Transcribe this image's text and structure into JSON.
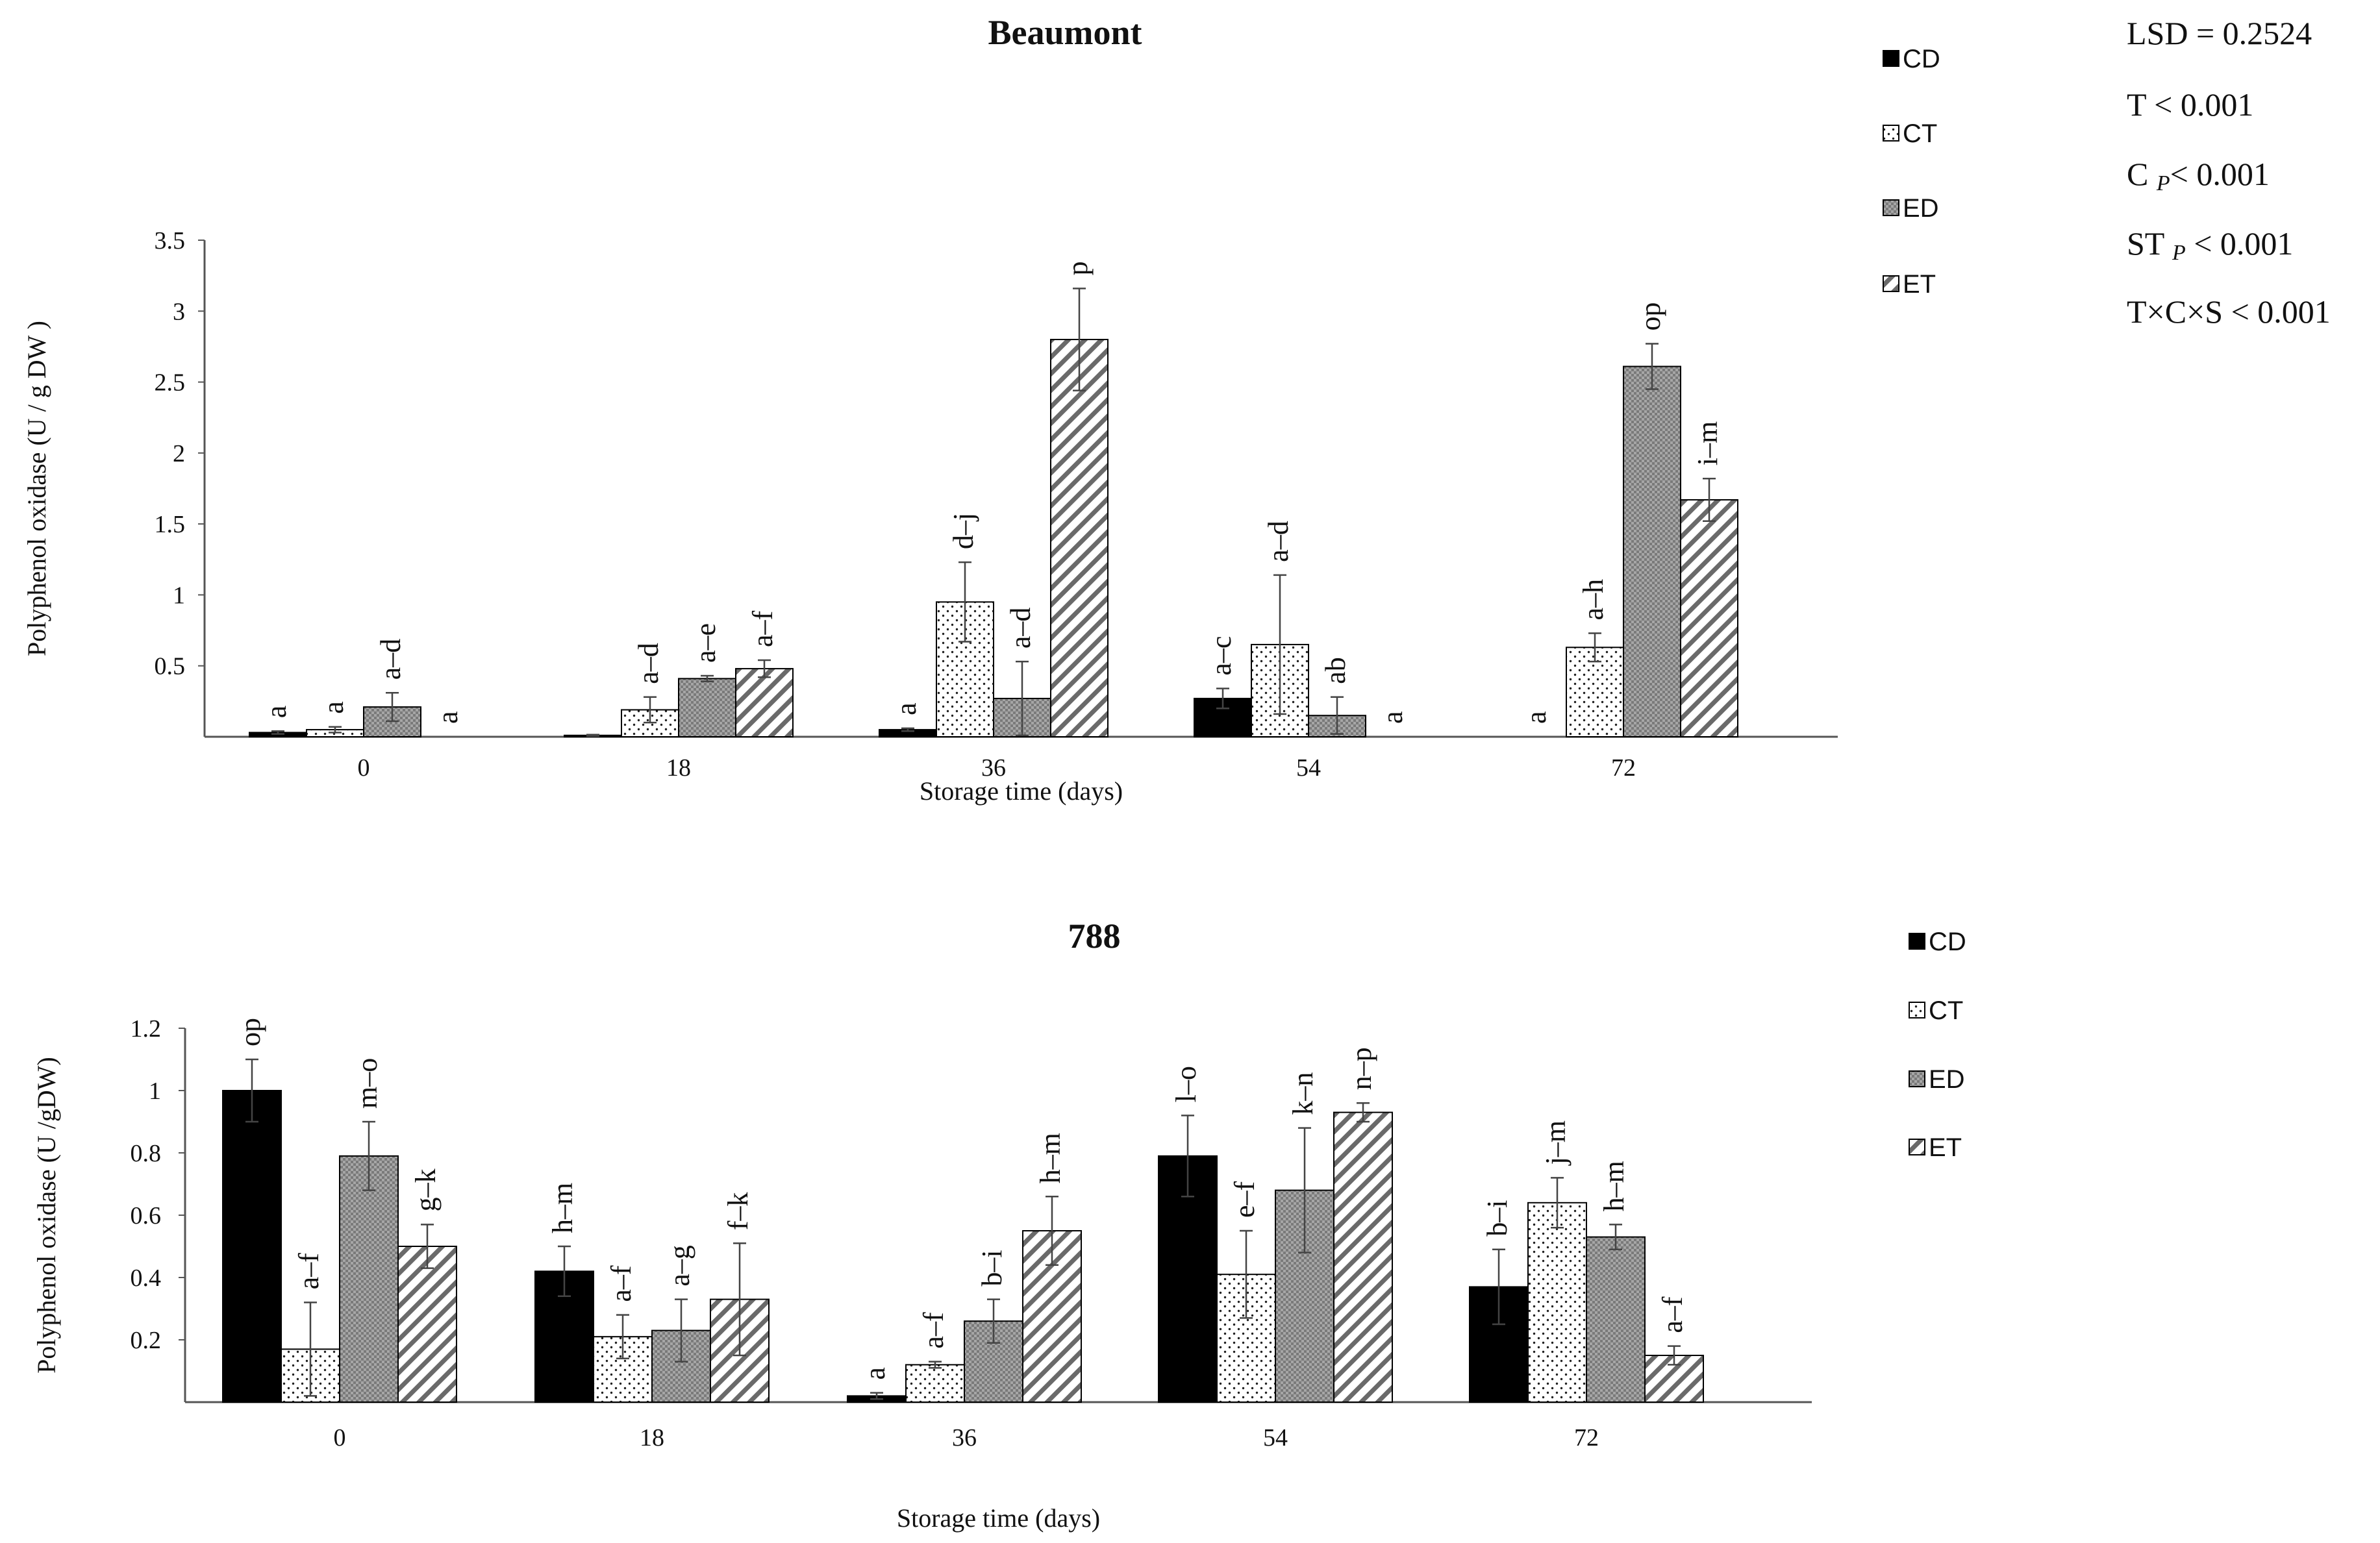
{
  "stats": {
    "lsd": "LSD =  0.2524",
    "t": "T < 0.001",
    "c_pre": "C ",
    "c_sub": "P",
    "c_post": "< 0.001",
    "st_pre": "ST ",
    "st_sub": "P",
    "st_post": " < 0.001",
    "txcxs": "T×C×S < 0.001"
  },
  "colors": {
    "CD": "#000000",
    "CT": "#ffffff",
    "ED": "#a9a9a9",
    "ET": "#ffffff",
    "axis": "#555555"
  },
  "chart_data": [
    {
      "id": "beaumont",
      "type": "bar",
      "title": "Beaumont",
      "xlabel": "Storage time  (days)",
      "ylabel": "Polyphenol oxidase (U / g DW )",
      "ylim": [
        0,
        3.5
      ],
      "yticks": [
        "0.5",
        "1",
        "1.5",
        "2",
        "2.5",
        "3",
        "3.5"
      ],
      "categories": [
        "0",
        "18",
        "36",
        "54",
        "72"
      ],
      "series": [
        {
          "name": "CD",
          "pattern": "solid",
          "values": [
            0.03,
            0.01,
            0.05,
            0.27,
            0
          ],
          "errors": [
            0.01,
            0.005,
            0.01,
            0.07,
            0
          ],
          "letters": [
            "a",
            "",
            "a",
            "a–c",
            "a"
          ]
        },
        {
          "name": "CT",
          "pattern": "dots",
          "values": [
            0.05,
            0.19,
            0.95,
            0.65,
            0.63
          ],
          "errors": [
            0.02,
            0.09,
            0.28,
            0.49,
            0.1
          ],
          "letters": [
            "a",
            "a–d",
            "d–j",
            "a–d",
            "a–h"
          ]
        },
        {
          "name": "ED",
          "pattern": "crosshatch",
          "values": [
            0.21,
            0.41,
            0.27,
            0.15,
            2.61
          ],
          "errors": [
            0.1,
            0.02,
            0.26,
            0.13,
            0.16
          ],
          "letters": [
            "a–d",
            "a–e",
            "a–d",
            "ab",
            "op"
          ]
        },
        {
          "name": "ET",
          "pattern": "diagonal",
          "values": [
            0,
            0.48,
            2.8,
            0,
            1.67
          ],
          "errors": [
            0,
            0.06,
            0.36,
            0,
            0.15
          ],
          "letters": [
            "a",
            "a–f",
            "p",
            "a",
            "i–m"
          ]
        }
      ]
    },
    {
      "id": "c788",
      "type": "bar",
      "title": "788",
      "xlabel": "Storage time  (days)",
      "ylabel": "Polyphenol oxidase (U /gDW)",
      "ylim": [
        0,
        1.2
      ],
      "yticks": [
        "0.2",
        "0.4",
        "0.6",
        "0.8",
        "1",
        "1.2"
      ],
      "categories": [
        "0",
        "18",
        "36",
        "54",
        "72"
      ],
      "series": [
        {
          "name": "CD",
          "pattern": "solid",
          "values": [
            1.0,
            0.42,
            0.02,
            0.79,
            0.37
          ],
          "errors": [
            0.1,
            0.08,
            0.01,
            0.13,
            0.12
          ],
          "letters": [
            "op",
            "h–m",
            "a",
            "l–o",
            "b–i"
          ]
        },
        {
          "name": "CT",
          "pattern": "dots",
          "values": [
            0.17,
            0.21,
            0.12,
            0.41,
            0.64
          ],
          "errors": [
            0.15,
            0.07,
            0.01,
            0.14,
            0.08
          ],
          "letters": [
            "a–f",
            "a–f",
            "a–f",
            "e–f",
            "j–m"
          ]
        },
        {
          "name": "ED",
          "pattern": "crosshatch",
          "values": [
            0.79,
            0.23,
            0.26,
            0.68,
            0.53
          ],
          "errors": [
            0.11,
            0.1,
            0.07,
            0.2,
            0.04
          ],
          "letters": [
            "m–o",
            "a–g",
            "b–i",
            "k–n",
            "h–m"
          ]
        },
        {
          "name": "ET",
          "pattern": "diagonal",
          "values": [
            0.5,
            0.33,
            0.55,
            0.93,
            0.15
          ],
          "errors": [
            0.07,
            0.18,
            0.11,
            0.03,
            0.03
          ],
          "letters": [
            "g–k",
            "f–k",
            "h–m",
            "n–p",
            "a–f"
          ]
        }
      ]
    }
  ]
}
